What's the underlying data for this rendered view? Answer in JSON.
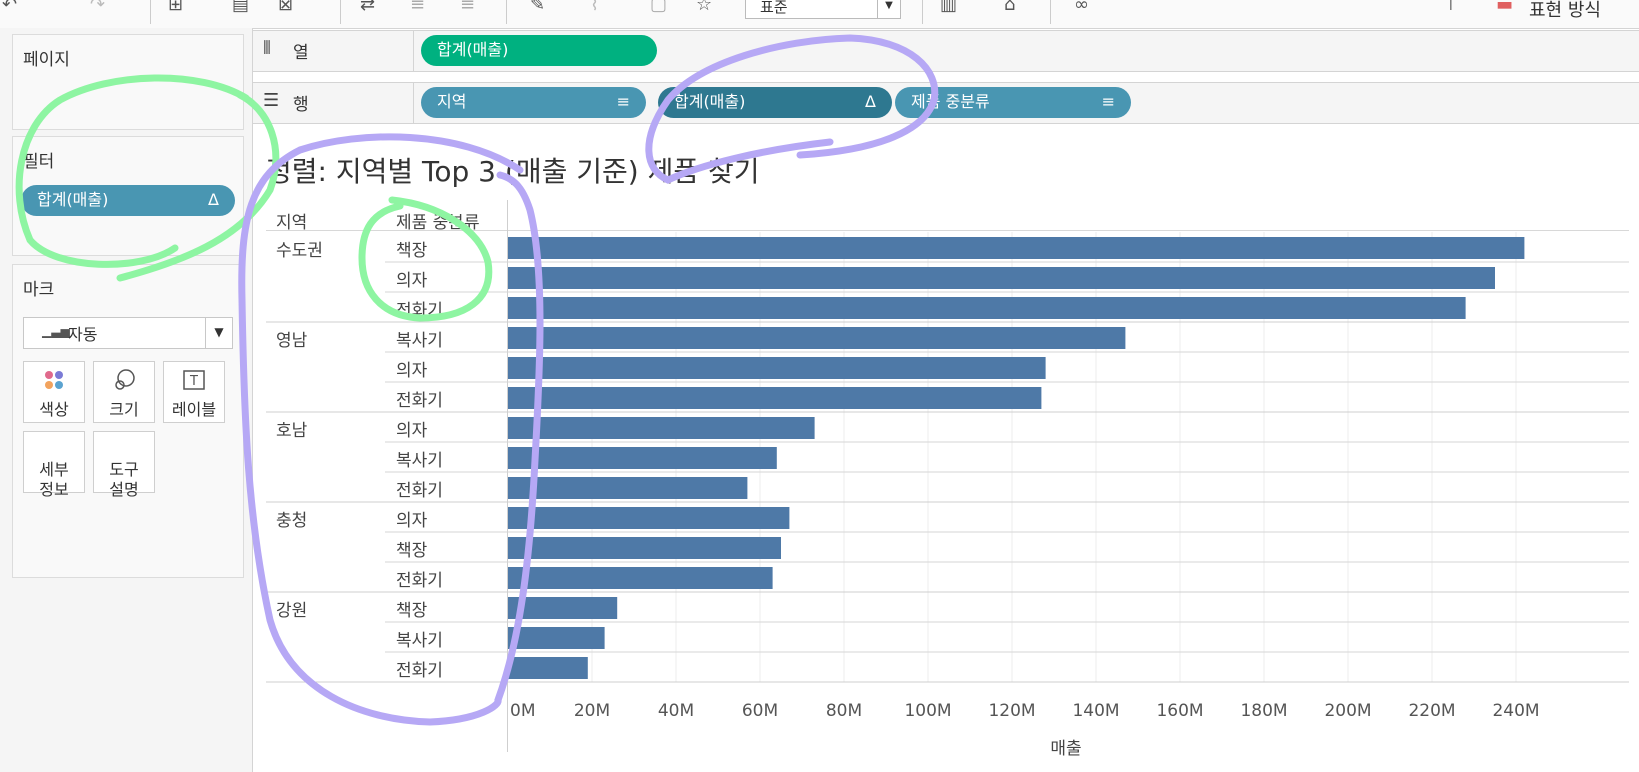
{
  "toolbar": {
    "dropdown_value": "표준",
    "right_label": "표현 방식"
  },
  "left_pane": {
    "pages_title": "페이지",
    "filters_title": "필터",
    "filter_pill": {
      "label": "합계(매출)",
      "icon": "delta-icon"
    },
    "marks_title": "마크",
    "mark_type": "자동",
    "mark_buttons": [
      {
        "label": "색상",
        "icon": "color-dots-icon"
      },
      {
        "label": "크기",
        "icon": "size-circles-icon"
      },
      {
        "label": "레이블",
        "icon": "text-label-icon"
      },
      {
        "label": "세부\n정보",
        "icon": "detail-icon"
      },
      {
        "label": "도구\n설명",
        "icon": "tooltip-icon"
      }
    ]
  },
  "shelves": {
    "columns_label": "열",
    "columns_pills": [
      "합계(매출)"
    ],
    "rows_label": "행",
    "rows_pills": [
      {
        "label": "지역",
        "icon": "sort-desc-icon"
      },
      {
        "label": "합계(매출)",
        "icon": "delta-icon"
      },
      {
        "label": "제품 중분류",
        "icon": "sort-desc-icon"
      }
    ]
  },
  "viz": {
    "title": "정렬: 지역별 Top 3 (매출 기준) 제품 찾기",
    "header_region": "지역",
    "header_product": "제품 중분류"
  },
  "chart_data": {
    "type": "bar",
    "orientation": "horizontal",
    "xlabel": "매출",
    "xlim": [
      0,
      252
    ],
    "x_ticks": [
      "0M",
      "20M",
      "40M",
      "60M",
      "80M",
      "100M",
      "120M",
      "140M",
      "160M",
      "180M",
      "200M",
      "220M",
      "240M"
    ],
    "bar_color": "#4e79a7",
    "groups": [
      {
        "region": "수도권",
        "items": [
          {
            "product": "책장",
            "value": 242
          },
          {
            "product": "의자",
            "value": 235
          },
          {
            "product": "전화기",
            "value": 228
          }
        ]
      },
      {
        "region": "영남",
        "items": [
          {
            "product": "복사기",
            "value": 147
          },
          {
            "product": "의자",
            "value": 128
          },
          {
            "product": "전화기",
            "value": 127
          }
        ]
      },
      {
        "region": "호남",
        "items": [
          {
            "product": "의자",
            "value": 73
          },
          {
            "product": "복사기",
            "value": 64
          },
          {
            "product": "전화기",
            "value": 57
          }
        ]
      },
      {
        "region": "충청",
        "items": [
          {
            "product": "의자",
            "value": 67
          },
          {
            "product": "책장",
            "value": 65
          },
          {
            "product": "전화기",
            "value": 63
          }
        ]
      },
      {
        "region": "강원",
        "items": [
          {
            "product": "책장",
            "value": 26
          },
          {
            "product": "복사기",
            "value": 23
          },
          {
            "product": "전화기",
            "value": 19
          }
        ]
      }
    ]
  }
}
